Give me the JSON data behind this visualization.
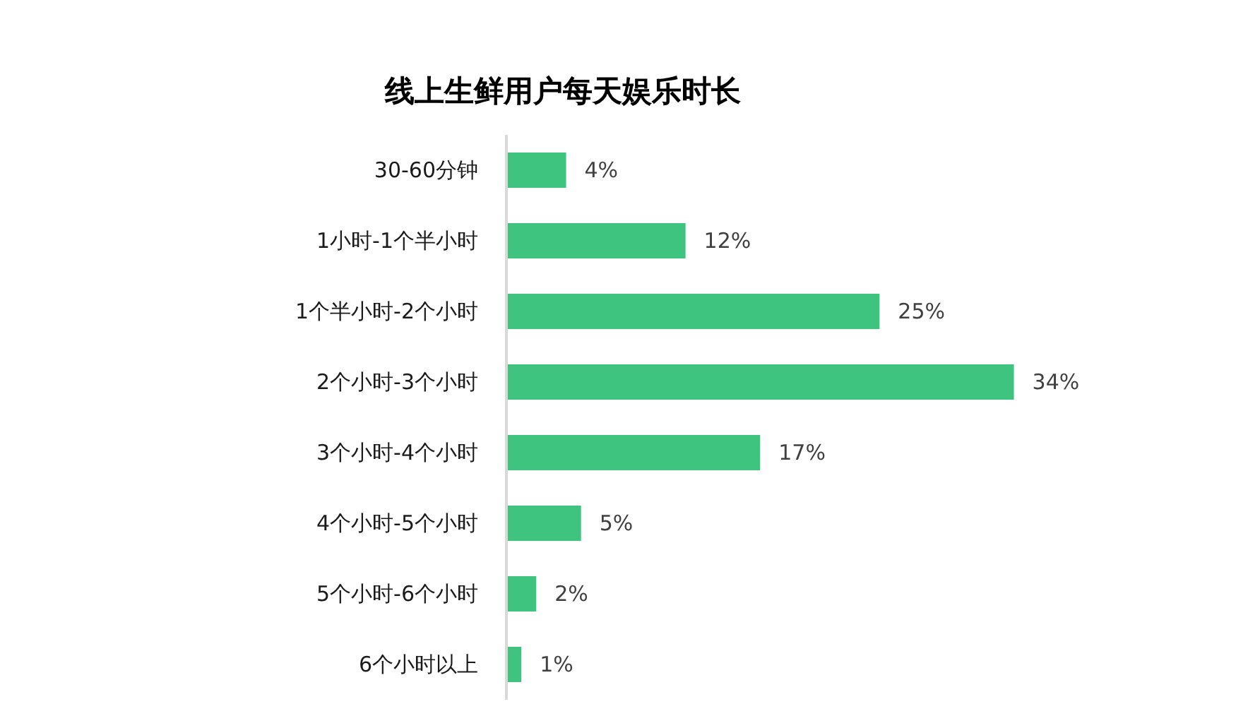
{
  "chart_data": {
    "type": "bar",
    "orientation": "horizontal",
    "title": "线上生鲜用户每天娱乐时长",
    "categories": [
      "30-60分钟",
      "1小时-1个半小时",
      "1个半小时-2个小时",
      "2个小时-3个小时",
      "3个小时-4个小时",
      "4个小时-5个小时",
      "5个小时-6个小时",
      "6个小时以上"
    ],
    "values": [
      4,
      12,
      25,
      34,
      17,
      5,
      2,
      1
    ],
    "value_labels": [
      "4%",
      "12%",
      "25%",
      "34%",
      "17%",
      "5%",
      "2%",
      "1%"
    ],
    "color": "#3ec47f",
    "grid": false
  }
}
